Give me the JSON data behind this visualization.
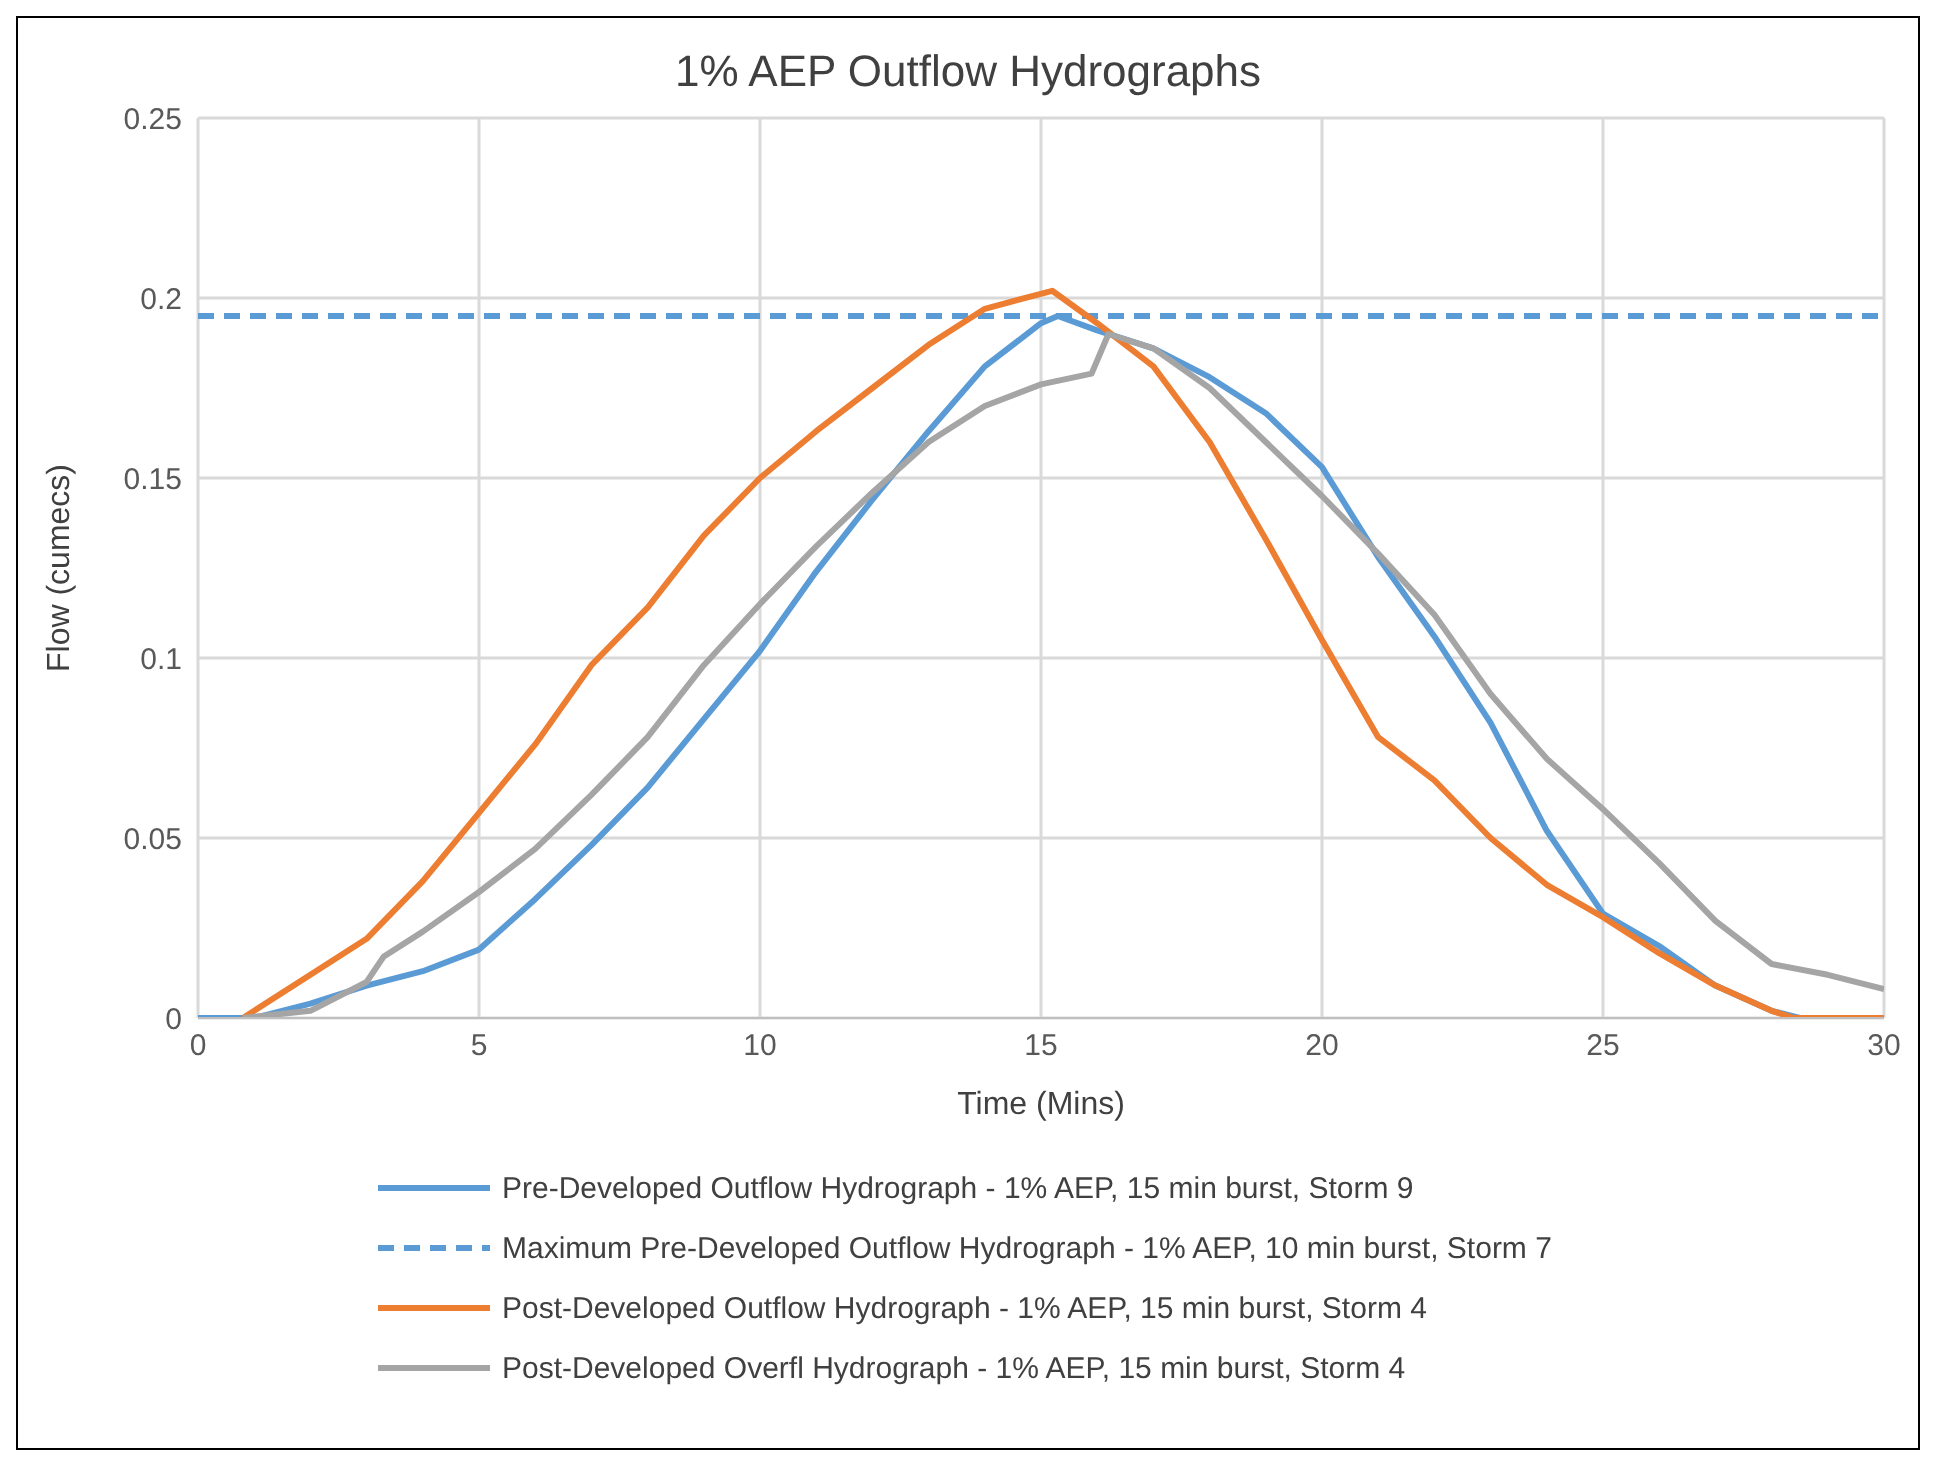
{
  "chart_data": {
    "type": "line",
    "title": "1% AEP Outflow Hydrographs",
    "xlabel": "Time (Mins)",
    "ylabel": "Flow (cumecs)",
    "xlim": [
      0,
      30
    ],
    "xticks": [
      0,
      5,
      10,
      15,
      20,
      25,
      30
    ],
    "ylim": [
      0,
      0.25
    ],
    "yticks": [
      0,
      0.05,
      0.1,
      0.15,
      0.2,
      0.25
    ],
    "grid": true,
    "legend": "bottom",
    "marker": "none",
    "line_style": "solid",
    "series": [
      {
        "name": "Pre-Developed Outflow Hydrograph - 1% AEP, 15 min burst, Storm 9",
        "color": "#5b9bd5",
        "x": [
          0,
          1,
          2,
          3,
          4,
          5,
          6,
          7,
          8,
          9,
          10,
          11,
          12,
          13,
          14,
          15,
          15.3,
          16,
          17,
          18,
          19,
          20,
          21,
          22,
          23,
          24,
          25,
          26,
          27,
          28,
          28.5,
          30
        ],
        "values": [
          0,
          0,
          0.004,
          0.009,
          0.013,
          0.019,
          0.033,
          0.048,
          0.064,
          0.083,
          0.102,
          0.124,
          0.144,
          0.163,
          0.181,
          0.193,
          0.195,
          0.191,
          0.186,
          0.178,
          0.168,
          0.153,
          0.128,
          0.106,
          0.082,
          0.052,
          0.029,
          0.02,
          0.009,
          0.002,
          0,
          0
        ]
      },
      {
        "name": "Post-Developed Outflow Hydrograph - 1% AEP, 15 min burst, Storm 4",
        "color": "#ed7d31",
        "x": [
          0.8,
          1,
          2,
          3,
          4,
          5,
          6,
          7,
          8,
          9,
          10,
          11,
          12,
          13,
          14,
          15.2,
          16,
          17,
          18,
          19,
          20,
          21,
          22,
          23,
          24,
          25,
          26,
          27,
          28,
          28.4,
          30
        ],
        "values": [
          0,
          0.002,
          0.012,
          0.022,
          0.038,
          0.057,
          0.076,
          0.098,
          0.114,
          0.134,
          0.15,
          0.163,
          0.175,
          0.187,
          0.197,
          0.202,
          0.193,
          0.181,
          0.16,
          0.133,
          0.105,
          0.078,
          0.066,
          0.05,
          0.037,
          0.028,
          0.018,
          0.009,
          0.002,
          0,
          0
        ]
      },
      {
        "name": "Post-Developed Overfl Hydrograph - 1% AEP, 15 min burst, Storm 4",
        "color": "#a5a5a5",
        "x": [
          0.8,
          2,
          3,
          3.3,
          4,
          5,
          6,
          7,
          8,
          9,
          10,
          11,
          12,
          13,
          14,
          15,
          15.9,
          16.2,
          17,
          18,
          19,
          20,
          21,
          22,
          23,
          24,
          25,
          26,
          27,
          28,
          29,
          30
        ],
        "values": [
          0,
          0.002,
          0.01,
          0.017,
          0.024,
          0.035,
          0.047,
          0.062,
          0.078,
          0.098,
          0.115,
          0.131,
          0.146,
          0.16,
          0.17,
          0.176,
          0.179,
          0.19,
          0.186,
          0.175,
          0.16,
          0.145,
          0.129,
          0.112,
          0.09,
          0.072,
          0.058,
          0.043,
          0.027,
          0.015,
          0.012,
          0.008
        ]
      }
    ],
    "ref_lines": [
      {
        "axis": "y",
        "value": 0.195,
        "label": "Maximum Pre-Developed Outflow Hydrograph - 1% AEP, 10 min burst, Storm 7",
        "color": "#5b9bd5",
        "line_style": "dashed"
      }
    ]
  }
}
